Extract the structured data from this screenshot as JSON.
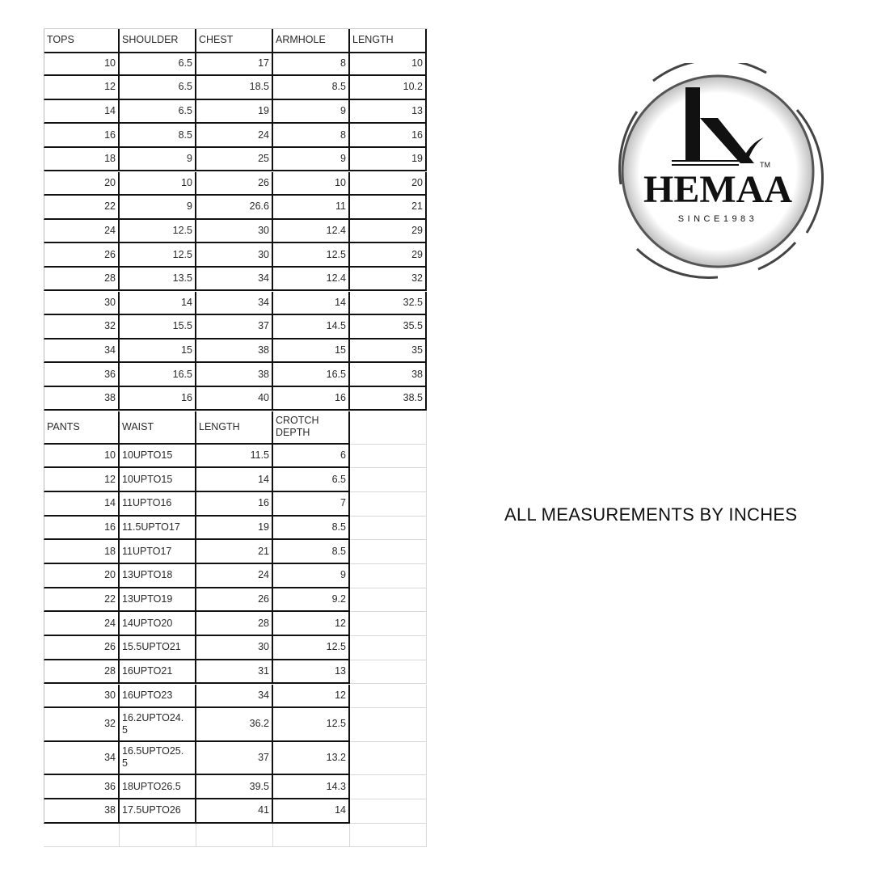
{
  "tops": {
    "headers": [
      "TOPS",
      "SHOULDER",
      "CHEST",
      "ARMHOLE",
      "LENGTH"
    ],
    "rows": [
      [
        "10",
        "6.5",
        "17",
        "8",
        "10"
      ],
      [
        "12",
        "6.5",
        "18.5",
        "8.5",
        "10.2"
      ],
      [
        "14",
        "6.5",
        "19",
        "9",
        "13"
      ],
      [
        "16",
        "8.5",
        "24",
        "8",
        "16"
      ],
      [
        "18",
        "9",
        "25",
        "9",
        "19"
      ],
      [
        "20",
        "10",
        "26",
        "10",
        "20"
      ],
      [
        "22",
        "9",
        "26.6",
        "11",
        "21"
      ],
      [
        "24",
        "12.5",
        "30",
        "12.4",
        "29"
      ],
      [
        "26",
        "12.5",
        "30",
        "12.5",
        "29"
      ],
      [
        "28",
        "13.5",
        "34",
        "12.4",
        "32"
      ],
      [
        "30",
        "14",
        "34",
        "14",
        "32.5"
      ],
      [
        "32",
        "15.5",
        "37",
        "14.5",
        "35.5"
      ],
      [
        "34",
        "15",
        "38",
        "15",
        "35"
      ],
      [
        "36",
        "16.5",
        "38",
        "16.5",
        "38"
      ],
      [
        "38",
        "16",
        "40",
        "16",
        "38.5"
      ]
    ]
  },
  "pants": {
    "headers": [
      "PANTS",
      "WAIST",
      "LENGTH",
      "CROTCH DEPTH"
    ],
    "rows": [
      [
        "10",
        "10UPTO15",
        "11.5",
        "6"
      ],
      [
        "12",
        "10UPTO15",
        "14",
        "6.5"
      ],
      [
        "14",
        "11UPTO16",
        "16",
        "7"
      ],
      [
        "16",
        "11.5UPTO17",
        "19",
        "8.5"
      ],
      [
        "18",
        "11UPTO17",
        "21",
        "8.5"
      ],
      [
        "20",
        "13UPTO18",
        "24",
        "9"
      ],
      [
        "22",
        "13UPTO19",
        "26",
        "9.2"
      ],
      [
        "24",
        "14UPTO20",
        "28",
        "12"
      ],
      [
        "26",
        "15.5UPTO21",
        "30",
        "12.5"
      ],
      [
        "28",
        "16UPTO21",
        "31",
        "13"
      ],
      [
        "30",
        "16UPTO23",
        "34",
        "12"
      ],
      [
        "32",
        "16.2UPTO24.5",
        "36.2",
        "12.5"
      ],
      [
        "34",
        "16.5UPTO25.5",
        "37",
        "13.2"
      ],
      [
        "36",
        "18UPTO26.5",
        "39.5",
        "14.3"
      ],
      [
        "38",
        "17.5UPTO26",
        "41",
        "14"
      ]
    ]
  },
  "note": "ALL MEASUREMENTS BY INCHES",
  "logo": {
    "brand": "HEMAA",
    "tagline": "SINCE1983",
    "tm": "TM",
    "icon": "heel-h-monogram-icon"
  }
}
